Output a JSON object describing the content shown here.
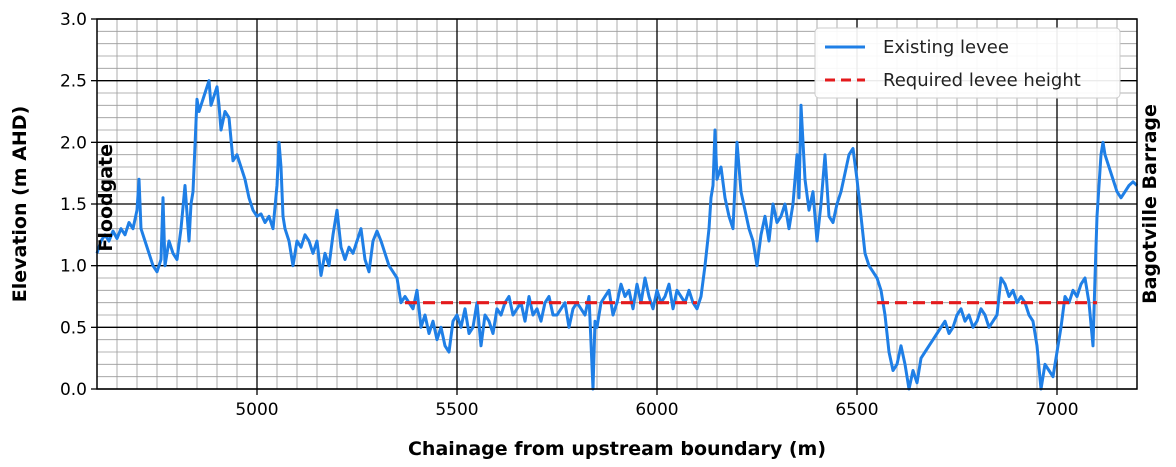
{
  "chart_data": {
    "type": "line",
    "title": "",
    "xlabel": "Chainage from upstream boundary (m)",
    "ylabel": "Elevation (m AHD)",
    "xlim": [
      4600,
      7200
    ],
    "ylim": [
      0.0,
      3.0
    ],
    "x_ticks": [
      5000,
      5500,
      6000,
      6500,
      7000
    ],
    "y_ticks": [
      0.0,
      0.5,
      1.0,
      1.5,
      2.0,
      2.5,
      3.0
    ],
    "x_tick_labels": [
      "5000",
      "5500",
      "6000",
      "6500",
      "7000"
    ],
    "y_tick_labels": [
      "0.0",
      "0.5",
      "1.0",
      "1.5",
      "2.0",
      "2.5",
      "3.0"
    ],
    "grid": true,
    "minor_grid": true,
    "legend_position": "top-right",
    "annotations": [
      {
        "text": "Floodgate",
        "x": 4620,
        "y": 1.55
      },
      {
        "text": "Bagotville Barrage",
        "x": 7230,
        "y": 1.5
      }
    ],
    "series": [
      {
        "name": "Existing levee",
        "color": "#1f7fe6",
        "style": "solid",
        "x": [
          4600,
          4610,
          4620,
          4630,
          4640,
          4650,
          4660,
          4670,
          4680,
          4690,
          4700,
          4705,
          4710,
          4720,
          4730,
          4740,
          4750,
          4760,
          4765,
          4770,
          4775,
          4780,
          4790,
          4800,
          4810,
          4820,
          4830,
          4835,
          4840,
          4850,
          4855,
          4860,
          4870,
          4880,
          4885,
          4890,
          4900,
          4905,
          4910,
          4920,
          4930,
          4940,
          4950,
          4960,
          4970,
          4980,
          4990,
          5000,
          5010,
          5020,
          5030,
          5040,
          5050,
          5055,
          5060,
          5065,
          5070,
          5080,
          5090,
          5100,
          5110,
          5120,
          5130,
          5140,
          5150,
          5160,
          5170,
          5180,
          5190,
          5200,
          5210,
          5220,
          5230,
          5240,
          5250,
          5260,
          5270,
          5280,
          5290,
          5300,
          5310,
          5320,
          5330,
          5340,
          5350,
          5360,
          5370,
          5380,
          5390,
          5400,
          5410,
          5420,
          5430,
          5440,
          5450,
          5460,
          5470,
          5480,
          5490,
          5500,
          5510,
          5520,
          5530,
          5540,
          5550,
          5560,
          5570,
          5580,
          5590,
          5600,
          5610,
          5620,
          5630,
          5640,
          5650,
          5660,
          5670,
          5680,
          5690,
          5700,
          5710,
          5720,
          5730,
          5740,
          5750,
          5760,
          5770,
          5780,
          5790,
          5800,
          5810,
          5820,
          5830,
          5840,
          5845,
          5850,
          5860,
          5870,
          5880,
          5890,
          5900,
          5910,
          5920,
          5930,
          5940,
          5950,
          5960,
          5970,
          5980,
          5990,
          6000,
          6010,
          6020,
          6030,
          6040,
          6050,
          6060,
          6070,
          6080,
          6090,
          6100,
          6110,
          6120,
          6130,
          6135,
          6140,
          6145,
          6150,
          6160,
          6170,
          6180,
          6190,
          6200,
          6210,
          6220,
          6230,
          6240,
          6250,
          6260,
          6270,
          6280,
          6290,
          6300,
          6310,
          6320,
          6330,
          6340,
          6350,
          6355,
          6360,
          6370,
          6380,
          6390,
          6400,
          6410,
          6420,
          6430,
          6440,
          6450,
          6460,
          6470,
          6480,
          6490,
          6500,
          6510,
          6520,
          6530,
          6540,
          6550,
          6560,
          6570,
          6580,
          6590,
          6600,
          6610,
          6620,
          6630,
          6640,
          6650,
          6660,
          6670,
          6680,
          6690,
          6700,
          6710,
          6720,
          6730,
          6740,
          6750,
          6760,
          6770,
          6780,
          6790,
          6800,
          6810,
          6820,
          6830,
          6840,
          6850,
          6860,
          6870,
          6880,
          6890,
          6900,
          6910,
          6920,
          6930,
          6940,
          6950,
          6960,
          6970,
          6980,
          6990,
          7000,
          7010,
          7020,
          7030,
          7040,
          7050,
          7060,
          7070,
          7080,
          7090,
          7095,
          7100,
          7110,
          7115,
          7120,
          7130,
          7140,
          7150,
          7160,
          7170,
          7180,
          7190,
          7200
        ],
        "y": [
          1.1,
          1.2,
          1.25,
          1.2,
          1.28,
          1.22,
          1.3,
          1.25,
          1.35,
          1.3,
          1.45,
          1.7,
          1.3,
          1.2,
          1.1,
          1.0,
          0.95,
          1.05,
          1.55,
          1.0,
          1.1,
          1.2,
          1.1,
          1.05,
          1.3,
          1.65,
          1.2,
          1.5,
          1.6,
          2.35,
          2.25,
          2.3,
          2.4,
          2.5,
          2.3,
          2.35,
          2.45,
          2.3,
          2.1,
          2.25,
          2.2,
          1.85,
          1.9,
          1.8,
          1.7,
          1.55,
          1.45,
          1.4,
          1.42,
          1.35,
          1.4,
          1.3,
          1.65,
          2.0,
          1.8,
          1.4,
          1.3,
          1.2,
          1.0,
          1.2,
          1.15,
          1.25,
          1.2,
          1.1,
          1.2,
          0.92,
          1.1,
          1.0,
          1.25,
          1.45,
          1.15,
          1.05,
          1.15,
          1.1,
          1.2,
          1.3,
          1.05,
          0.95,
          1.2,
          1.28,
          1.2,
          1.1,
          1.0,
          0.95,
          0.9,
          0.7,
          0.75,
          0.7,
          0.65,
          0.8,
          0.5,
          0.6,
          0.45,
          0.55,
          0.4,
          0.5,
          0.35,
          0.3,
          0.55,
          0.6,
          0.5,
          0.65,
          0.45,
          0.5,
          0.7,
          0.35,
          0.6,
          0.55,
          0.45,
          0.65,
          0.6,
          0.7,
          0.75,
          0.6,
          0.65,
          0.7,
          0.55,
          0.75,
          0.6,
          0.65,
          0.55,
          0.7,
          0.75,
          0.6,
          0.6,
          0.65,
          0.7,
          0.5,
          0.65,
          0.7,
          0.65,
          0.6,
          0.75,
          0.0,
          0.55,
          0.5,
          0.7,
          0.75,
          0.8,
          0.6,
          0.7,
          0.85,
          0.75,
          0.8,
          0.65,
          0.85,
          0.7,
          0.9,
          0.75,
          0.65,
          0.8,
          0.7,
          0.75,
          0.85,
          0.65,
          0.8,
          0.75,
          0.7,
          0.8,
          0.7,
          0.65,
          0.75,
          1.0,
          1.3,
          1.55,
          1.65,
          2.1,
          1.7,
          1.8,
          1.55,
          1.4,
          1.3,
          2.0,
          1.6,
          1.45,
          1.3,
          1.2,
          1.0,
          1.25,
          1.4,
          1.2,
          1.5,
          1.35,
          1.4,
          1.5,
          1.3,
          1.5,
          1.9,
          1.55,
          2.3,
          1.7,
          1.45,
          1.6,
          1.2,
          1.5,
          1.9,
          1.4,
          1.35,
          1.5,
          1.6,
          1.75,
          1.9,
          1.95,
          1.7,
          1.4,
          1.1,
          1.0,
          0.95,
          0.9,
          0.8,
          0.6,
          0.3,
          0.15,
          0.2,
          0.35,
          0.2,
          0.0,
          0.15,
          0.05,
          0.25,
          0.3,
          0.35,
          0.4,
          0.45,
          0.5,
          0.55,
          0.45,
          0.5,
          0.6,
          0.65,
          0.55,
          0.6,
          0.5,
          0.55,
          0.65,
          0.6,
          0.5,
          0.55,
          0.6,
          0.9,
          0.85,
          0.75,
          0.8,
          0.7,
          0.75,
          0.7,
          0.6,
          0.55,
          0.35,
          0.0,
          0.2,
          0.15,
          0.1,
          0.3,
          0.5,
          0.75,
          0.7,
          0.8,
          0.75,
          0.85,
          0.9,
          0.7,
          0.35,
          0.9,
          1.4,
          1.9,
          2.0,
          1.9,
          1.8,
          1.7,
          1.6,
          1.55,
          1.6,
          1.65,
          1.68,
          1.65
        ]
      },
      {
        "name": "Required levee height",
        "color": "#e31a1c",
        "style": "dashed",
        "segments": [
          {
            "x": [
              5370,
              6100
            ],
            "y": [
              0.7,
              0.7
            ]
          },
          {
            "x": [
              6550,
              7100
            ],
            "y": [
              0.7,
              0.7
            ]
          }
        ]
      }
    ]
  }
}
